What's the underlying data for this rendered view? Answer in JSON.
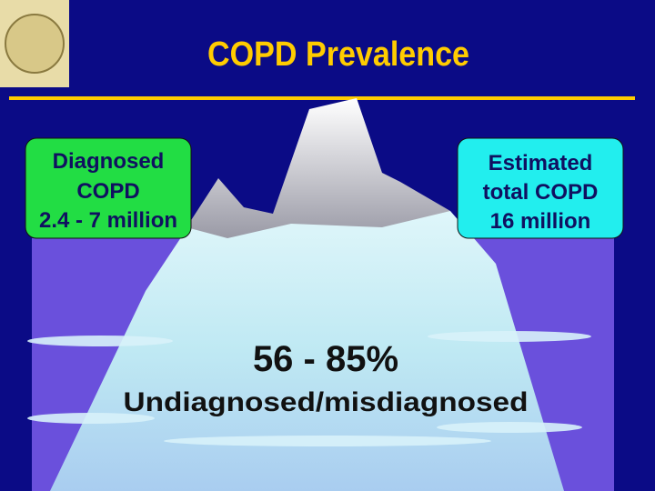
{
  "header": {
    "title": "COPD Prevalence"
  },
  "left_box": {
    "lines": [
      "Diagnosed",
      "COPD",
      "2.4 - 7 million"
    ]
  },
  "right_box": {
    "lines": [
      "Estimated",
      "total COPD",
      "16 million"
    ]
  },
  "center": {
    "percent": "56 - 85%",
    "label": "Undiagnosed/misdiagnosed"
  }
}
